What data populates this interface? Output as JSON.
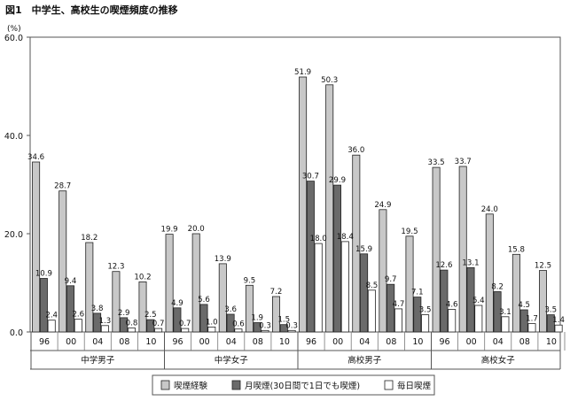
{
  "page": {
    "title": "図1　中学生、高校生の喫煙頻度の推移"
  },
  "chart_data": {
    "type": "bar",
    "title": "図1　中学生、高校生の喫煙頻度の推移",
    "ylabel": "(%)",
    "ylim": [
      0,
      60
    ],
    "yticks": [
      "0.0",
      "20.0",
      "40.0",
      "60.0"
    ],
    "grid": false,
    "legend_position": "bottom",
    "groups": [
      {
        "name": "中学男子",
        "years": [
          "96",
          "00",
          "04",
          "08",
          "10"
        ]
      },
      {
        "name": "中学女子",
        "years": [
          "96",
          "00",
          "04",
          "08",
          "10"
        ]
      },
      {
        "name": "高校男子",
        "years": [
          "96",
          "00",
          "04",
          "08",
          "10"
        ]
      },
      {
        "name": "高校女子",
        "years": [
          "96",
          "00",
          "04",
          "08",
          "10"
        ]
      }
    ],
    "series": [
      {
        "name": "喫煙経験",
        "color": "#c8c8c8",
        "values": [
          34.6,
          28.7,
          18.2,
          12.3,
          10.2,
          19.9,
          20.0,
          13.9,
          9.5,
          7.2,
          51.9,
          50.3,
          36.0,
          24.9,
          19.5,
          33.5,
          33.7,
          24.0,
          15.8,
          12.5
        ],
        "labels": [
          "34.6",
          "28.7",
          "18.2",
          "12.3",
          "10.2",
          "19.9",
          "20.0",
          "13.9",
          "9.5",
          "7.2",
          "51.9",
          "50.3",
          "36.0",
          "24.9",
          "19.5",
          "33.5",
          "33.7",
          "24.0",
          "15.8",
          "12.5"
        ]
      },
      {
        "name": "月喫煙(30日間で1日でも喫煙)",
        "color": "#6a6a6a",
        "values": [
          10.9,
          9.4,
          3.8,
          2.9,
          2.5,
          4.9,
          5.6,
          3.6,
          1.9,
          1.5,
          30.7,
          29.9,
          15.9,
          9.7,
          7.1,
          12.6,
          13.1,
          8.2,
          4.5,
          3.5
        ],
        "labels": [
          "10.9",
          "9.4",
          "3.8",
          "2.9",
          "2.5",
          "4.9",
          "5.6",
          "3.6",
          "1.9",
          "1.5",
          "30.7",
          "29.9",
          "15.9",
          "9.7",
          "7.1",
          "12.6",
          "13.1",
          "8.2",
          "4.5",
          "3.5"
        ]
      },
      {
        "name": "毎日喫煙",
        "color": "#ffffff",
        "values": [
          2.4,
          2.6,
          1.3,
          0.8,
          0.7,
          0.7,
          1.0,
          0.6,
          0.3,
          0.3,
          18.0,
          18.4,
          8.5,
          4.7,
          3.5,
          4.6,
          5.4,
          3.1,
          1.7,
          1.4
        ],
        "labels": [
          "2.4",
          "2.6",
          "1.3",
          "0.8",
          "0.7",
          "0.7",
          "1.0",
          "0.6",
          "0.3",
          "0.3",
          "18.0",
          "18.4",
          "8.5",
          "4.7",
          "3.5",
          "4.6",
          "5.4",
          "3.1",
          "1.7",
          "1.4"
        ]
      }
    ]
  }
}
